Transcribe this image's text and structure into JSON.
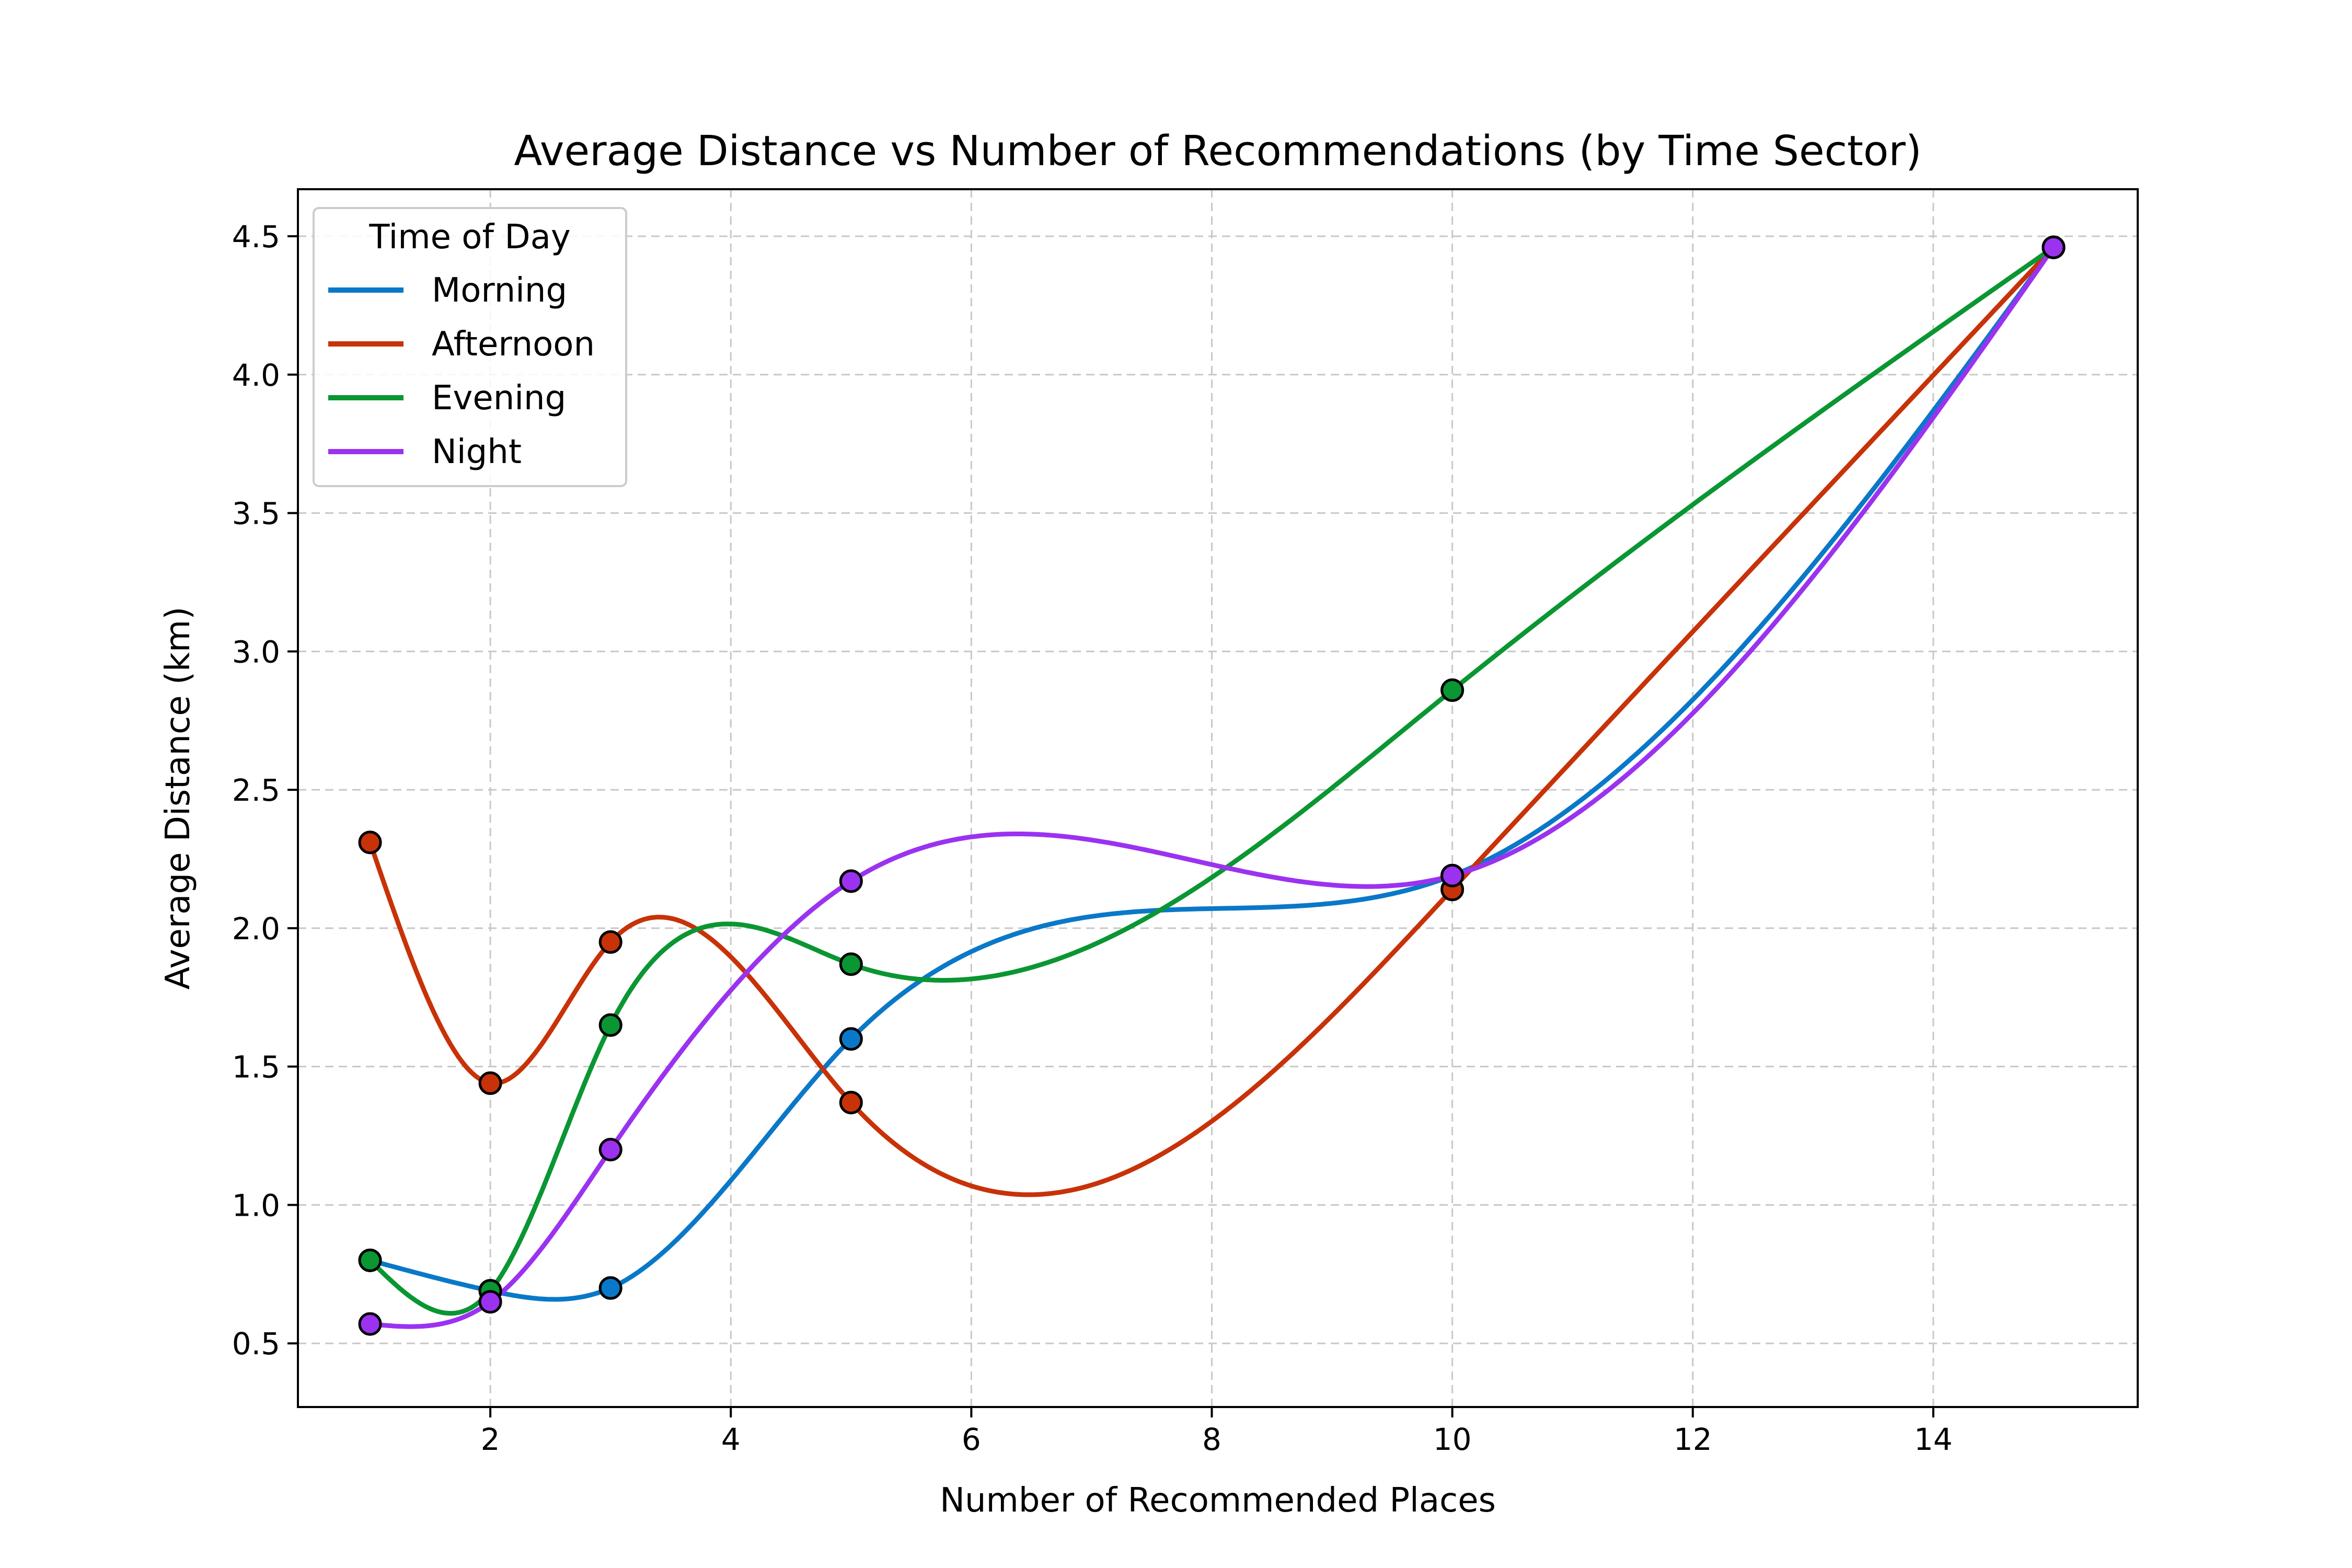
{
  "chart_data": {
    "type": "line",
    "title": "Average Distance vs Number of Recommendations (by Time Sector)",
    "xlabel": "Number of Recommended Places",
    "ylabel": "Average Distance (km)",
    "xlim": [
      0.4,
      15.7
    ],
    "ylim": [
      0.27,
      4.67
    ],
    "xticks": [
      2,
      4,
      6,
      8,
      10,
      12,
      14
    ],
    "yticks": [
      0.5,
      1.0,
      1.5,
      2.0,
      2.5,
      3.0,
      3.5,
      4.0,
      4.5
    ],
    "xtick_labels": [
      "2",
      "4",
      "6",
      "8",
      "10",
      "12",
      "14"
    ],
    "ytick_labels": [
      "0.5",
      "1.0",
      "1.5",
      "2.0",
      "2.5",
      "3.0",
      "3.5",
      "4.0",
      "4.5"
    ],
    "grid": true,
    "legend": {
      "title": "Time of Day",
      "placement": "top-left"
    },
    "x": [
      1,
      2,
      3,
      5,
      10,
      15
    ],
    "series": [
      {
        "name": "Morning",
        "color": "#0a78c8",
        "values": [
          0.8,
          0.69,
          0.7,
          1.6,
          2.19,
          4.46
        ]
      },
      {
        "name": "Afternoon",
        "color": "#c83208",
        "values": [
          2.31,
          1.44,
          1.95,
          1.37,
          2.14,
          4.46
        ]
      },
      {
        "name": "Evening",
        "color": "#0a9632",
        "values": [
          0.8,
          0.69,
          1.65,
          1.87,
          2.86,
          4.46
        ]
      },
      {
        "name": "Night",
        "color": "#9b32f0",
        "values": [
          0.57,
          0.65,
          1.2,
          2.17,
          2.19,
          4.46
        ]
      }
    ]
  }
}
